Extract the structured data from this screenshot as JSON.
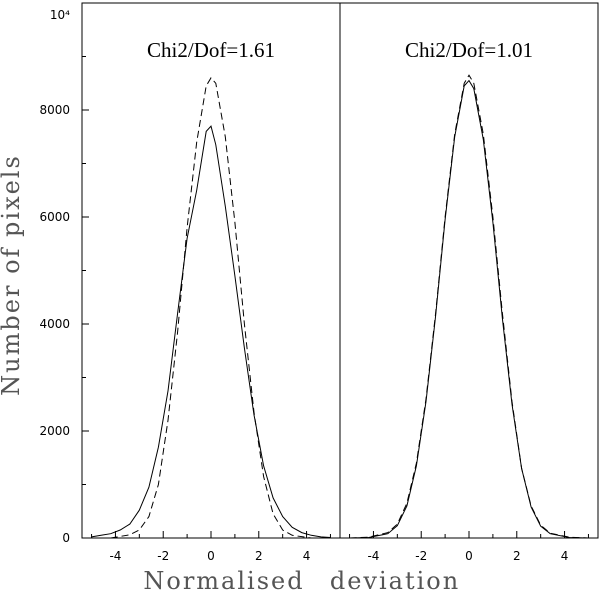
{
  "chart_data": [
    {
      "type": "line",
      "title": "Chi2/Dof=1.61",
      "xlim": [
        -5.4,
        5.4
      ],
      "ylim": [
        0,
        10000
      ],
      "x_ticks": [
        -4,
        -2,
        0,
        2,
        4
      ],
      "y_ticks": [
        0,
        2000,
        4000,
        6000,
        8000
      ],
      "y_tick_labels": [
        "0",
        "2000",
        "4000",
        "6000",
        "8000"
      ],
      "y_top_label": "10⁴",
      "grid": false,
      "series": [
        {
          "style": "solid",
          "x": [
            -5.0,
            -4.6,
            -4.2,
            -3.8,
            -3.4,
            -3.0,
            -2.6,
            -2.2,
            -1.8,
            -1.4,
            -1.0,
            -0.6,
            -0.2,
            0.0,
            0.2,
            0.6,
            1.0,
            1.4,
            1.8,
            2.2,
            2.6,
            3.0,
            3.4,
            3.8,
            4.2,
            4.6,
            5.0
          ],
          "values": [
            20,
            50,
            80,
            150,
            260,
            520,
            950,
            1700,
            2750,
            4200,
            5600,
            6500,
            7600,
            7700,
            7350,
            6200,
            4900,
            3550,
            2300,
            1350,
            750,
            400,
            200,
            100,
            50,
            20,
            10
          ]
        },
        {
          "style": "dashed",
          "x": [
            -4.2,
            -3.4,
            -3.0,
            -2.6,
            -2.2,
            -1.8,
            -1.4,
            -1.0,
            -0.6,
            -0.2,
            0.0,
            0.2,
            0.6,
            1.0,
            1.4,
            1.8,
            2.2,
            2.6,
            3.0,
            3.4,
            4.2
          ],
          "values": [
            0,
            60,
            150,
            400,
            1000,
            2200,
            3850,
            5800,
            7400,
            8450,
            8600,
            8500,
            7500,
            5900,
            4000,
            2350,
            1150,
            450,
            150,
            50,
            0
          ]
        }
      ]
    },
    {
      "type": "line",
      "title": "Chi2/Dof=1.01",
      "xlim": [
        -5.4,
        5.4
      ],
      "ylim": [
        0,
        10000
      ],
      "x_ticks": [
        -4,
        -2,
        0,
        2,
        4
      ],
      "grid": false,
      "series": [
        {
          "style": "solid",
          "x": [
            -5.0,
            -4.2,
            -3.4,
            -3.0,
            -2.6,
            -2.2,
            -1.8,
            -1.4,
            -1.0,
            -0.6,
            -0.2,
            0.0,
            0.2,
            0.6,
            1.0,
            1.4,
            1.8,
            2.2,
            2.6,
            3.0,
            3.4,
            4.2,
            5.0
          ],
          "values": [
            0,
            10,
            80,
            230,
            600,
            1350,
            2550,
            4150,
            5950,
            7500,
            8450,
            8550,
            8400,
            7450,
            5900,
            4100,
            2500,
            1300,
            580,
            220,
            80,
            10,
            0
          ]
        },
        {
          "style": "dashed",
          "x": [
            -5.0,
            -4.2,
            -3.4,
            -3.0,
            -2.6,
            -2.2,
            -1.8,
            -1.4,
            -1.0,
            -0.6,
            -0.2,
            0.0,
            0.2,
            0.6,
            1.0,
            1.4,
            1.8,
            2.2,
            2.6,
            3.0,
            3.4,
            4.2,
            5.0
          ],
          "values": [
            0,
            15,
            100,
            260,
            650,
            1400,
            2600,
            4200,
            6000,
            7550,
            8500,
            8650,
            8500,
            7550,
            6000,
            4200,
            2550,
            1300,
            600,
            240,
            90,
            15,
            0
          ]
        }
      ]
    }
  ],
  "axes": {
    "ylabel": "Number of pixels",
    "xlabel_left": "Normalised",
    "xlabel_right": "deviation"
  }
}
